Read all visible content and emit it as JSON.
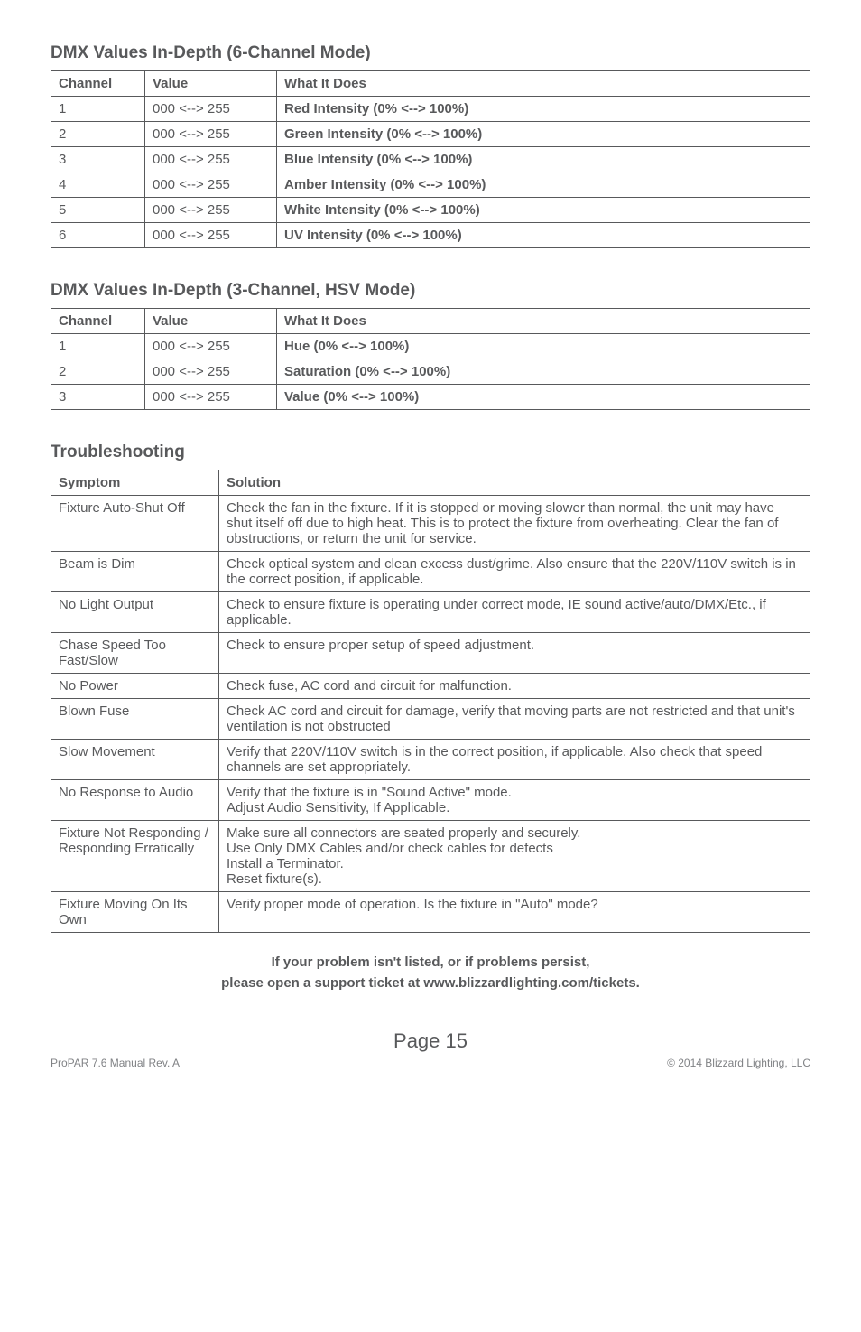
{
  "section1": {
    "heading": "DMX Values In-Depth (6-Channel Mode)",
    "headers": {
      "ch": "Channel",
      "val": "Value",
      "what": "What It Does"
    },
    "rows": [
      {
        "ch": "1",
        "val": "000 <--> 255",
        "what": "Red Intensity (0% <--> 100%)"
      },
      {
        "ch": "2",
        "val": "000 <--> 255",
        "what": "Green Intensity (0% <--> 100%)"
      },
      {
        "ch": "3",
        "val": "000 <--> 255",
        "what": "Blue Intensity (0% <--> 100%)"
      },
      {
        "ch": "4",
        "val": "000 <--> 255",
        "what": "Amber Intensity (0% <--> 100%)"
      },
      {
        "ch": "5",
        "val": "000 <--> 255",
        "what": "White Intensity (0% <--> 100%)"
      },
      {
        "ch": "6",
        "val": "000 <--> 255",
        "what": "UV Intensity (0% <--> 100%)"
      }
    ]
  },
  "section2": {
    "heading": "DMX Values In-Depth (3-Channel, HSV Mode)",
    "headers": {
      "ch": "Channel",
      "val": "Value",
      "what": "What It Does"
    },
    "rows": [
      {
        "ch": "1",
        "val": "000 <--> 255",
        "what": "Hue (0% <--> 100%)"
      },
      {
        "ch": "2",
        "val": "000 <--> 255",
        "what": "Saturation (0% <--> 100%)"
      },
      {
        "ch": "3",
        "val": "000 <--> 255",
        "what": "Value (0% <--> 100%)"
      }
    ]
  },
  "section3": {
    "heading": "Troubleshooting",
    "headers": {
      "sym": "Symptom",
      "sol": "Solution"
    },
    "rows": [
      {
        "sym": "Fixture Auto-Shut Off",
        "sol": "Check the fan in the fixture.  If it is stopped or moving slower than normal, the unit may have shut itself off due to high heat.  This is to protect the fixture from overheating.  Clear the fan of obstructions, or return the unit for service."
      },
      {
        "sym": "Beam is Dim",
        "sol": "Check optical system and clean excess dust/grime.  Also ensure that the 220V/110V switch is in the correct position, if applicable."
      },
      {
        "sym": "No Light Output",
        "sol": "Check to ensure fixture is operating under correct mode, IE sound active/auto/DMX/Etc., if applicable."
      },
      {
        "sym": "Chase Speed Too Fast/Slow",
        "sol": "Check to ensure proper setup of speed adjustment."
      },
      {
        "sym": "No Power",
        "sol": "Check fuse, AC cord and circuit for malfunction."
      },
      {
        "sym": "Blown Fuse",
        "sol": "Check AC cord and circuit for damage, verify that moving parts are not restricted and that unit's ventilation is not obstructed"
      },
      {
        "sym": "Slow Movement",
        "sol": "Verify that 220V/110V switch is in the correct position, if applicable.  Also check that speed channels are set appropriately."
      },
      {
        "sym": "No Response to Audio",
        "sol": "Verify that the fixture is in \"Sound Active\" mode.\nAdjust Audio Sensitivity, If Applicable."
      },
      {
        "sym": "Fixture Not Responding / Responding Erratically",
        "sol": "Make sure all connectors are seated properly and securely.\nUse Only DMX Cables and/or check cables for defects\nInstall a Terminator.\nReset fixture(s)."
      },
      {
        "sym": "Fixture Moving On Its Own",
        "sol": "Verify proper mode of operation.  Is the fixture in \"Auto\" mode?"
      }
    ]
  },
  "footer": {
    "line1": "If your problem isn't listed, or if problems persist,",
    "line2": "please open a support ticket at www.blizzardlighting.com/tickets.",
    "page": "Page 15",
    "left": "ProPAR 7.6 Manual Rev. A",
    "right": "© 2014 Blizzard Lighting, LLC"
  }
}
